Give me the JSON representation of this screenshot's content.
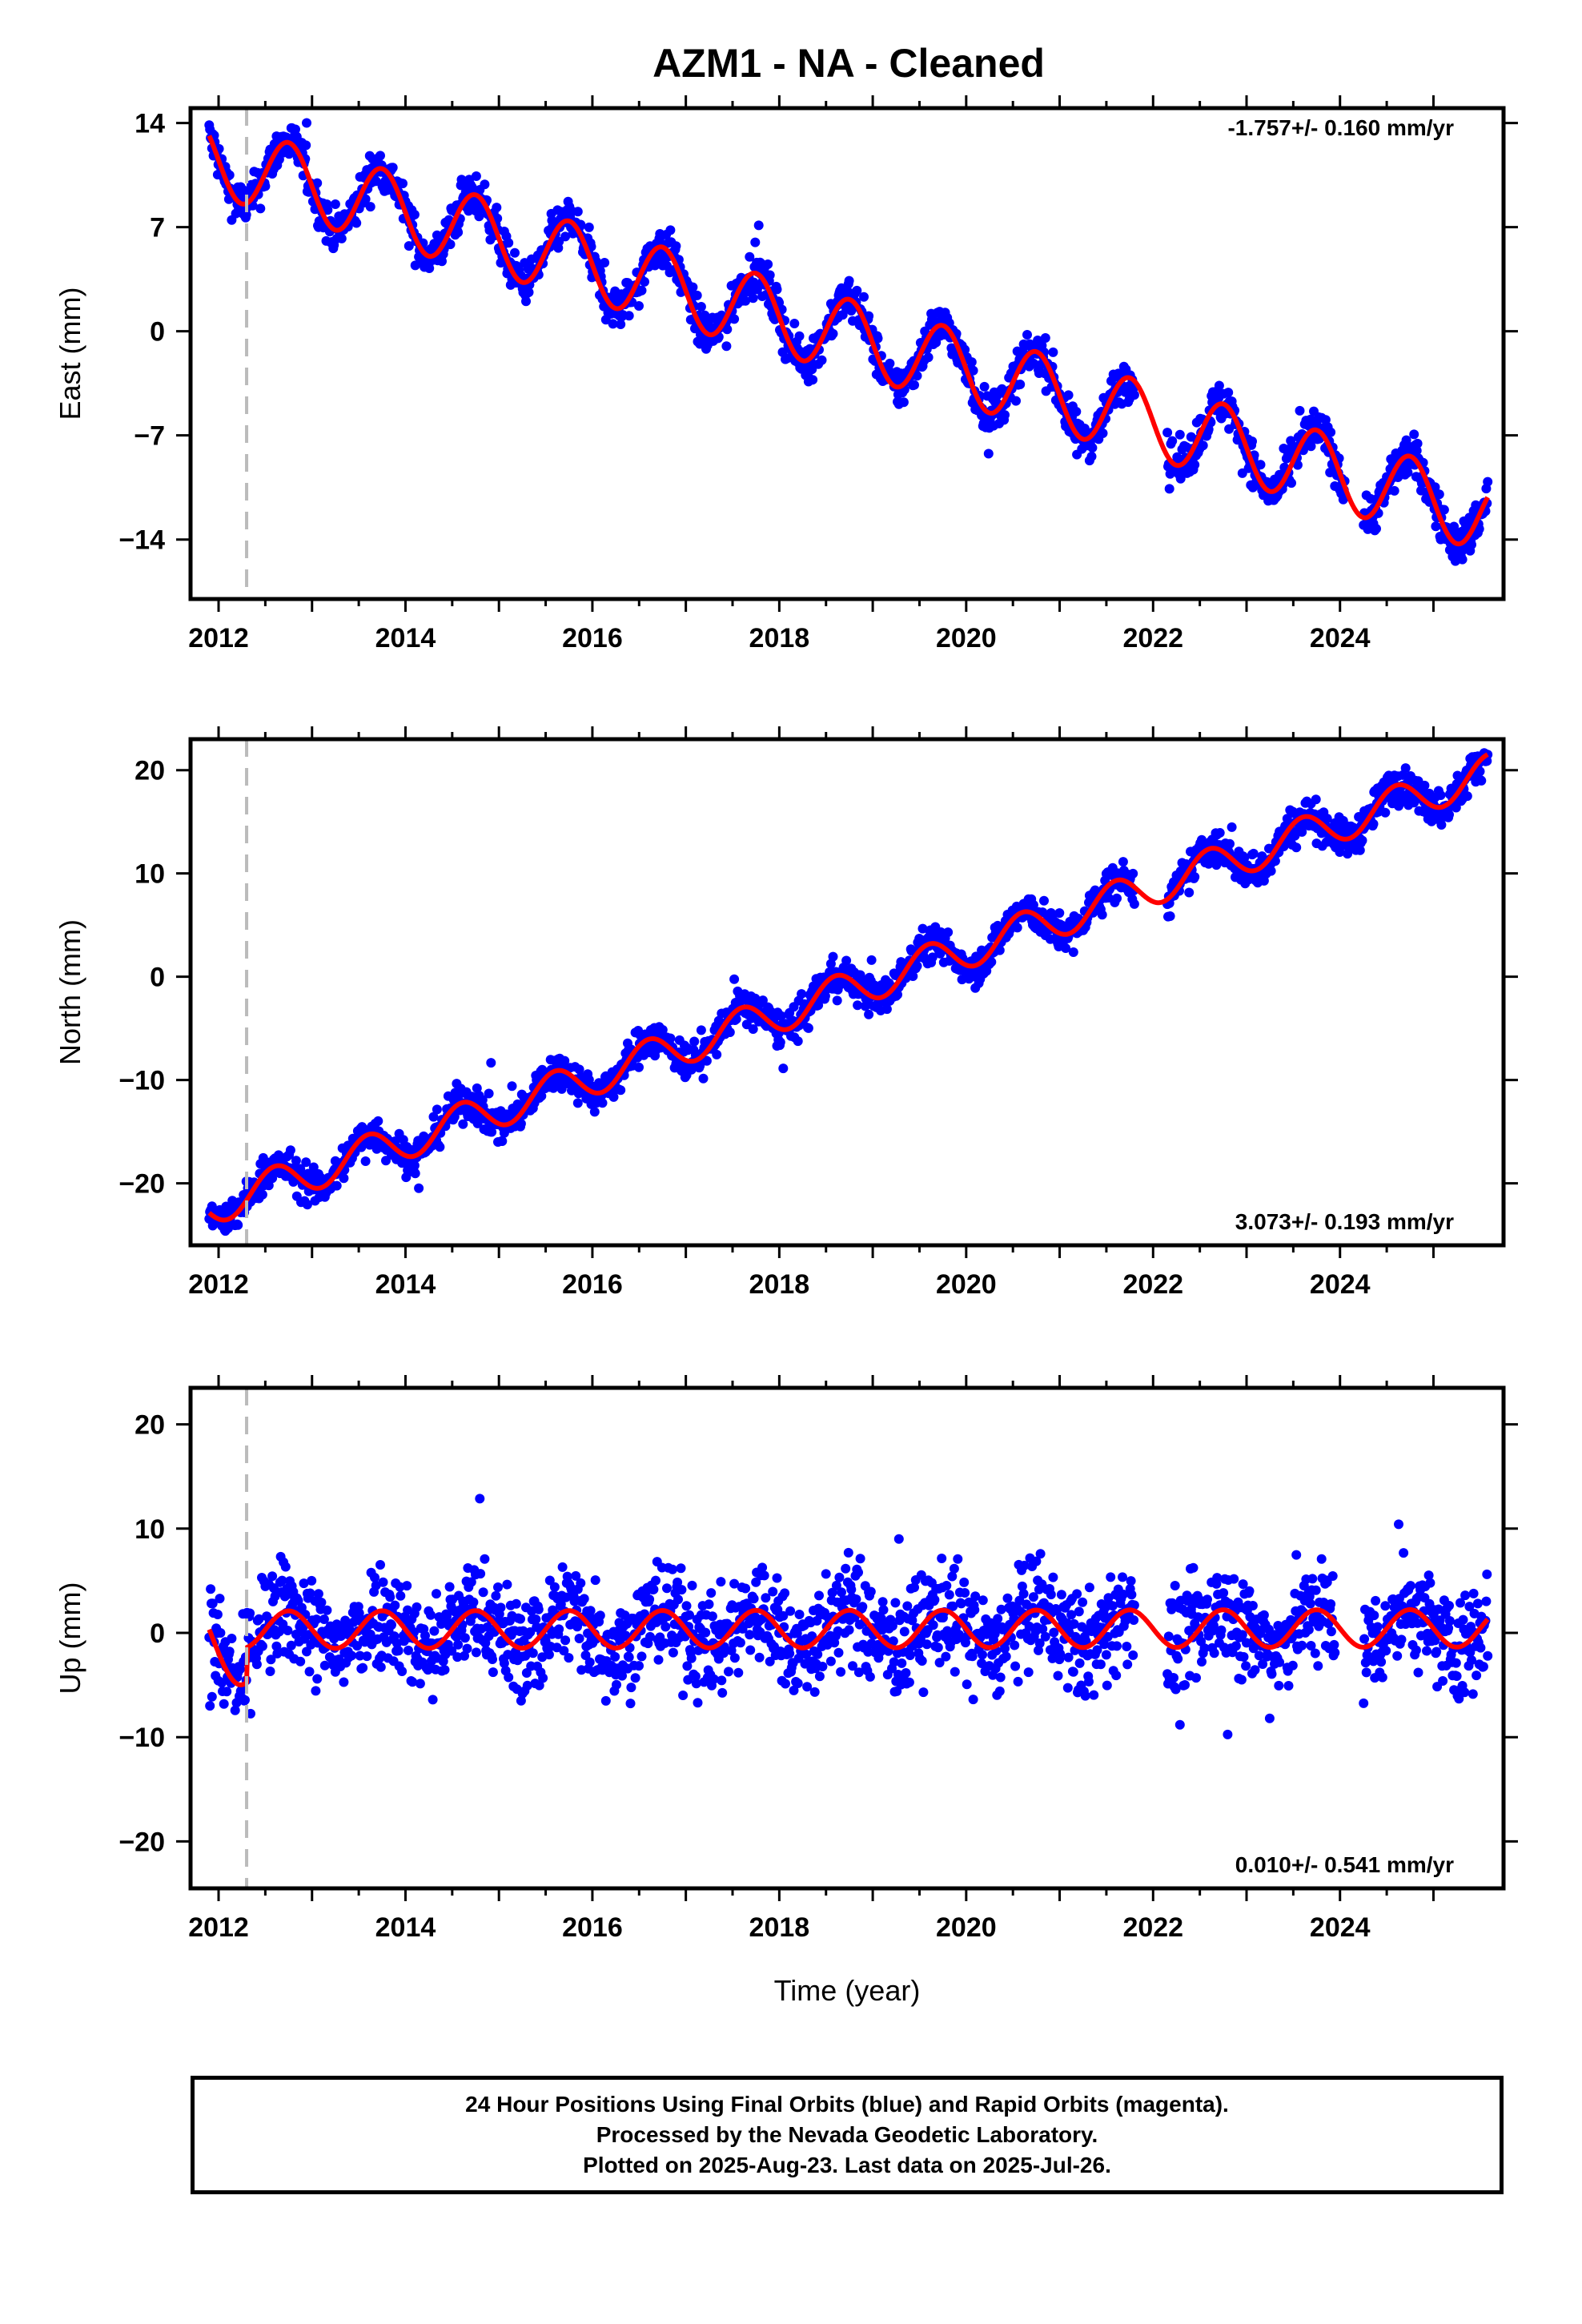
{
  "title": "AZM1  - NA - Cleaned",
  "colors": {
    "points": "#0000ff",
    "model": "#ff0000",
    "vline": "#bbbbbb",
    "axis": "#000000"
  },
  "chart_data": [
    {
      "type": "scatter",
      "ylabel": "East (mm)",
      "xlabel": "",
      "xlim": [
        2011.7,
        2025.75
      ],
      "ylim": [
        -18,
        15
      ],
      "yticks": [
        14,
        7,
        0,
        -7,
        -14
      ],
      "ytick_labels": [
        "14",
        "7",
        "0",
        "−7",
        "−14"
      ],
      "xticks": [
        2012,
        2014,
        2016,
        2018,
        2020,
        2022,
        2024
      ],
      "event_line_x": 2012.3,
      "rate_label": "-1.757+/- 0.160 mm/yr",
      "rate_position": "top-right",
      "model": {
        "start": 2011.9,
        "end": 2025.58,
        "intercept_year": 2012.0,
        "intercept": 11.5,
        "trend": -1.757,
        "amplitude": 2.5,
        "phase_year": 2012.75
      },
      "scatter": {
        "noise": 1.3,
        "gap": [
          2021.8,
          2022.15
        ]
      }
    },
    {
      "type": "scatter",
      "ylabel": "North (mm)",
      "xlabel": "",
      "xlim": [
        2011.7,
        2025.75
      ],
      "ylim": [
        -26,
        23
      ],
      "yticks": [
        20,
        10,
        0,
        -10,
        -20
      ],
      "ytick_labels": [
        "20",
        "10",
        "0",
        "−10",
        "−20"
      ],
      "xticks": [
        2012,
        2014,
        2016,
        2018,
        2020,
        2022,
        2024
      ],
      "event_line_x": 2012.3,
      "rate_label": "3.073+/- 0.193 mm/yr",
      "rate_position": "bottom-right",
      "model": {
        "start": 2011.9,
        "end": 2025.58,
        "intercept_year": 2012.0,
        "intercept": -22.0,
        "trend": 3.073,
        "amplitude": 1.8,
        "phase_year": 2012.6
      },
      "scatter": {
        "noise": 1.6,
        "gap": [
          2021.8,
          2022.15
        ]
      }
    },
    {
      "type": "scatter",
      "ylabel": "Up (mm)",
      "xlabel": "Time (year)",
      "xlim": [
        2011.7,
        2025.75
      ],
      "ylim": [
        -24.5,
        23.5
      ],
      "yticks": [
        20,
        10,
        0,
        -10,
        -20
      ],
      "ytick_labels": [
        "20",
        "10",
        "0",
        "−10",
        "−20"
      ],
      "xticks": [
        2012,
        2014,
        2016,
        2018,
        2020,
        2022,
        2024
      ],
      "event_line_x": 2012.3,
      "rate_label": "0.010+/- 0.541 mm/yr",
      "rate_position": "bottom-right",
      "model": {
        "start": 2011.9,
        "end": 2025.58,
        "intercept_year": 2012.0,
        "intercept": 0.3,
        "trend": 0.01,
        "amplitude": 1.8,
        "phase_year": 2012.75,
        "offset_before": -3.5
      },
      "scatter": {
        "noise": 4.6,
        "gap": [
          2021.8,
          2022.15
        ]
      }
    }
  ],
  "footer": {
    "line1": "24 Hour Positions Using Final Orbits (blue) and Rapid Orbits (magenta).",
    "line2": "Processed by the Nevada Geodetic Laboratory.",
    "line3": "Plotted on 2025-Aug-23. Last data on 2025-Jul-26."
  }
}
